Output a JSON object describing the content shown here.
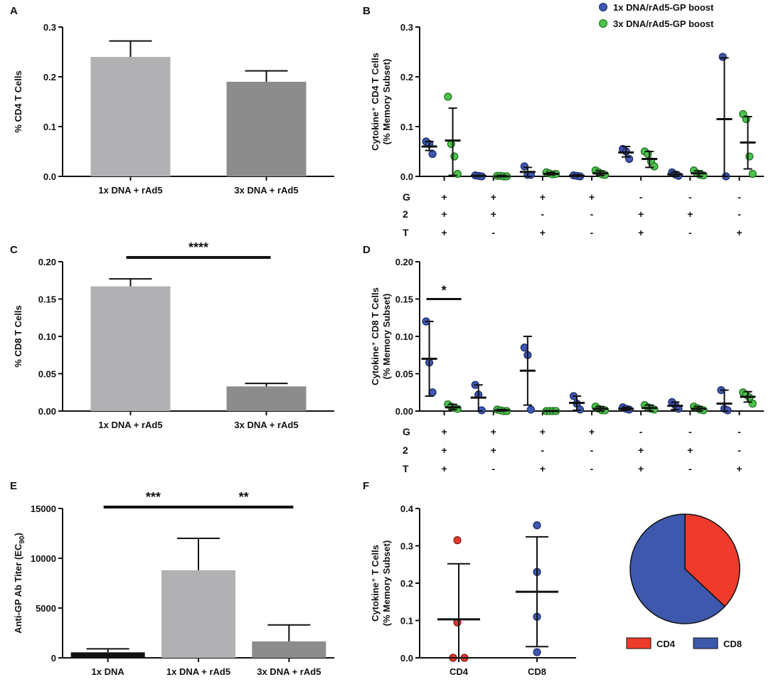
{
  "colors": {
    "bar_light": "#b1b1b4",
    "bar_dark": "#8c8c8c",
    "bar_black": "#111111",
    "dot_blue": "#3f57b0",
    "dot_green": "#4cc24c",
    "dot_red": "#e8382c",
    "pie_red": "#ef3b2c",
    "pie_blue": "#3d58ac"
  },
  "legend": {
    "series1": "1x DNA/rAd5-GP boost",
    "series2": "3x DNA/rAd5-GP boost"
  },
  "row_labels": [
    "G",
    "2",
    "T"
  ],
  "combo_symbols": [
    [
      "+",
      "+",
      "+",
      "+",
      "-",
      "-",
      "-"
    ],
    [
      "+",
      "+",
      "-",
      "-",
      "+",
      "+",
      "-"
    ],
    [
      "+",
      "-",
      "+",
      "-",
      "+",
      "-",
      "+"
    ]
  ],
  "chart_data": [
    {
      "panel": "A",
      "type": "bar",
      "ylabel": "% CD4 T Cells",
      "ylim": [
        0,
        0.3
      ],
      "yticks": [
        "0.0",
        "0.1",
        "0.2",
        "0.3"
      ],
      "categories": [
        "1x DNA + rAd5",
        "3x DNA + rAd5"
      ],
      "values": [
        0.24,
        0.19
      ],
      "errors": [
        0.032,
        0.022
      ],
      "significance": []
    },
    {
      "panel": "B",
      "type": "scatter",
      "ylabel_line1": "Cytokine⁺ CD4 T Cells",
      "ylabel_line2": "(% Memory Subset)",
      "ylim": [
        0,
        0.3
      ],
      "yticks": [
        "0.0",
        "0.1",
        "0.2",
        "0.3"
      ],
      "groups": [
        {
          "series": "1x DNA/rAd5-GP boost",
          "points": [
            0.07,
            0.065,
            0.045
          ],
          "mean": 0.06,
          "sd": [
            0.052,
            0.07
          ]
        },
        {
          "series": "3x DNA/rAd5-GP boost",
          "points": [
            0.16,
            0.065,
            0.04,
            0.005
          ],
          "mean": 0.072,
          "sd": [
            0.002,
            0.137
          ]
        },
        {
          "series": "1x DNA/rAd5-GP boost",
          "points": [
            0.002,
            0.001,
            0.0
          ],
          "mean": 0.001,
          "sd": [
            0.0,
            0.002
          ]
        },
        {
          "series": "3x DNA/rAd5-GP boost",
          "points": [
            0.001,
            0.001,
            0.0,
            0.0
          ],
          "mean": 0.0,
          "sd": [
            0.0,
            0.002
          ]
        },
        {
          "series": "1x DNA/rAd5-GP boost",
          "points": [
            0.02,
            0.003,
            0.003
          ],
          "mean": 0.009,
          "sd": [
            0.0,
            0.018
          ]
        },
        {
          "series": "3x DNA/rAd5-GP boost",
          "points": [
            0.008,
            0.006,
            0.004,
            0.005
          ],
          "mean": 0.005,
          "sd": [
            0.003,
            0.008
          ]
        },
        {
          "series": "1x DNA/rAd5-GP boost",
          "points": [
            0.002,
            0.001,
            0.0
          ],
          "mean": 0.001,
          "sd": [
            0.0,
            0.003
          ]
        },
        {
          "series": "3x DNA/rAd5-GP boost",
          "points": [
            0.012,
            0.008,
            0.004,
            0.003
          ],
          "mean": 0.006,
          "sd": [
            0.002,
            0.011
          ]
        },
        {
          "series": "1x DNA/rAd5-GP boost",
          "points": [
            0.055,
            0.05,
            0.035
          ],
          "mean": 0.048,
          "sd": [
            0.039,
            0.06
          ]
        },
        {
          "series": "3x DNA/rAd5-GP boost",
          "points": [
            0.05,
            0.045,
            0.03,
            0.02
          ],
          "mean": 0.035,
          "sd": [
            0.018,
            0.05
          ]
        },
        {
          "series": "1x DNA/rAd5-GP boost",
          "points": [
            0.008,
            0.004,
            0.001
          ],
          "mean": 0.004,
          "sd": [
            0.0,
            0.009
          ]
        },
        {
          "series": "3x DNA/rAd5-GP boost",
          "points": [
            0.012,
            0.006,
            0.003,
            0.002
          ],
          "mean": 0.006,
          "sd": [
            0.0,
            0.011
          ]
        },
        {
          "series": "1x DNA/rAd5-GP boost",
          "points": [
            0.24,
            0.0
          ],
          "mean": 0.115,
          "sd": [
            0.0,
            0.238
          ]
        },
        {
          "series": "3x DNA/rAd5-GP boost",
          "points": [
            0.125,
            0.115,
            0.04,
            0.005
          ],
          "mean": 0.068,
          "sd": [
            0.015,
            0.12
          ]
        }
      ]
    },
    {
      "panel": "C",
      "type": "bar",
      "ylabel": "% CD8 T Cells",
      "ylim": [
        0,
        0.2
      ],
      "yticks": [
        "0.00",
        "0.05",
        "0.10",
        "0.15",
        "0.20"
      ],
      "categories": [
        "1x DNA + rAd5",
        "3x DNA + rAd5"
      ],
      "values": [
        0.167,
        0.033
      ],
      "errors": [
        0.01,
        0.004
      ],
      "significance": [
        {
          "from": 0,
          "to": 1,
          "label": "****"
        }
      ]
    },
    {
      "panel": "D",
      "type": "scatter",
      "ylabel_line1": "Cytokine⁺ CD8 T Cells",
      "ylabel_line2": "(% Memory Subset)",
      "ylim": [
        0,
        0.2
      ],
      "yticks": [
        "0.00",
        "0.05",
        "0.10",
        "0.15",
        "0.20"
      ],
      "significance": [
        {
          "group_pair": 0,
          "label": "*"
        }
      ],
      "groups": [
        {
          "series": "1x DNA/rAd5-GP boost",
          "points": [
            0.12,
            0.065,
            0.025
          ],
          "mean": 0.07,
          "sd": [
            0.02,
            0.12
          ]
        },
        {
          "series": "3x DNA/rAd5-GP boost",
          "points": [
            0.009,
            0.006,
            0.004,
            0.003
          ],
          "mean": 0.005,
          "sd": [
            0.002,
            0.009
          ]
        },
        {
          "series": "1x DNA/rAd5-GP boost",
          "points": [
            0.035,
            0.022,
            0.001
          ],
          "mean": 0.018,
          "sd": [
            0.0,
            0.035
          ]
        },
        {
          "series": "3x DNA/rAd5-GP boost",
          "points": [
            0.002,
            0.001,
            0.0,
            0.0
          ],
          "mean": 0.001,
          "sd": [
            0.0,
            0.002
          ]
        },
        {
          "series": "1x DNA/rAd5-GP boost",
          "points": [
            0.085,
            0.075,
            0.002
          ],
          "mean": 0.054,
          "sd": [
            0.008,
            0.1
          ]
        },
        {
          "series": "3x DNA/rAd5-GP boost",
          "points": [
            0.0,
            0.0,
            0.0,
            0.0
          ],
          "mean": 0.0,
          "sd": [
            0.0,
            0.0
          ]
        },
        {
          "series": "1x DNA/rAd5-GP boost",
          "points": [
            0.02,
            0.01,
            0.002
          ],
          "mean": 0.011,
          "sd": [
            0.001,
            0.02
          ]
        },
        {
          "series": "3x DNA/rAd5-GP boost",
          "points": [
            0.006,
            0.003,
            0.001,
            0.001
          ],
          "mean": 0.003,
          "sd": [
            0.0,
            0.006
          ]
        },
        {
          "series": "1x DNA/rAd5-GP boost",
          "points": [
            0.005,
            0.003,
            0.002
          ],
          "mean": 0.003,
          "sd": [
            0.001,
            0.005
          ]
        },
        {
          "series": "3x DNA/rAd5-GP boost",
          "points": [
            0.008,
            0.005,
            0.003,
            0.002
          ],
          "mean": 0.004,
          "sd": [
            0.0,
            0.008
          ]
        },
        {
          "series": "1x DNA/rAd5-GP boost",
          "points": [
            0.012,
            0.008,
            0.003
          ],
          "mean": 0.007,
          "sd": [
            0.002,
            0.012
          ]
        },
        {
          "series": "3x DNA/rAd5-GP boost",
          "points": [
            0.006,
            0.004,
            0.002,
            0.001
          ],
          "mean": 0.003,
          "sd": [
            0.0,
            0.006
          ]
        },
        {
          "series": "1x DNA/rAd5-GP boost",
          "points": [
            0.028,
            0.003,
            0.001
          ],
          "mean": 0.01,
          "sd": [
            0.0,
            0.028
          ]
        },
        {
          "series": "3x DNA/rAd5-GP boost",
          "points": [
            0.025,
            0.022,
            0.018,
            0.01
          ],
          "mean": 0.019,
          "sd": [
            0.012,
            0.026
          ]
        }
      ]
    },
    {
      "panel": "E",
      "type": "bar",
      "ylabel": "Anti-GP Ab Titer (EC",
      "ylabel_sub": "90",
      "ylabel_end": ")",
      "ylim": [
        0,
        15000
      ],
      "yticks": [
        "0",
        "5000",
        "10000",
        "15000"
      ],
      "categories": [
        "1x DNA",
        "1x DNA + rAd5",
        "3x DNA + rAd5"
      ],
      "values": [
        550,
        8800,
        1650
      ],
      "errors": [
        350,
        3200,
        1650
      ],
      "significance": [
        {
          "from": 0,
          "to": 1,
          "label": "***"
        },
        {
          "from": 1,
          "to": 2,
          "label": "**"
        }
      ]
    },
    {
      "panel": "F",
      "type": "scatter",
      "ylabel_line1": "Cytokine⁺ T Cells",
      "ylabel_line2": "(% Memory Subset)",
      "ylim": [
        0,
        0.4
      ],
      "yticks": [
        "0.0",
        "0.1",
        "0.2",
        "0.3",
        "0.4"
      ],
      "categories": [
        "CD4",
        "CD8"
      ],
      "groups": [
        {
          "name": "CD4",
          "points": [
            0.315,
            0.095,
            0.0,
            0.0
          ],
          "mean": 0.103,
          "sd": [
            0.0,
            0.252
          ]
        },
        {
          "name": "CD8",
          "points": [
            0.355,
            0.23,
            0.11,
            0.015
          ],
          "mean": 0.177,
          "sd": [
            0.03,
            0.324
          ]
        }
      ]
    },
    {
      "panel": "F-pie",
      "type": "pie",
      "labels": [
        "CD4",
        "CD8"
      ],
      "values": [
        37,
        63
      ]
    }
  ],
  "panel_letters": [
    "A",
    "B",
    "C",
    "D",
    "E",
    "F"
  ]
}
